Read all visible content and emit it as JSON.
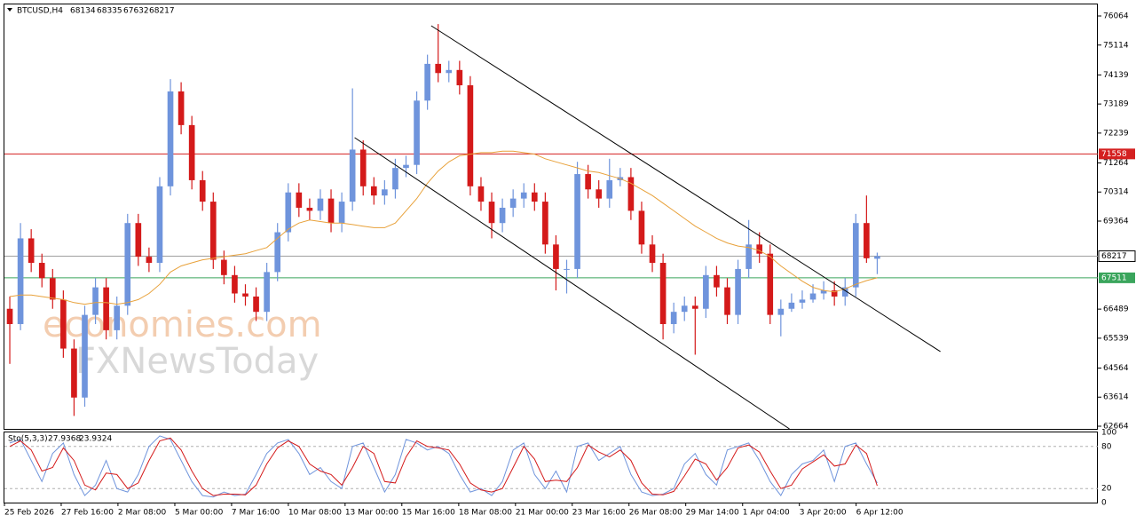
{
  "chart_data": {
    "type": "candlestick",
    "symbol": "BTCUSD,H4",
    "up_color": "#6f94dc",
    "down_color": "#d41a1a",
    "ohlc": [
      [
        66500,
        66900,
        64700,
        66000
      ],
      [
        66000,
        69300,
        65800,
        68800
      ],
      [
        68800,
        69100,
        67700,
        68000
      ],
      [
        68000,
        68300,
        67200,
        67500
      ],
      [
        67500,
        67800,
        66500,
        66800
      ],
      [
        66800,
        67100,
        64900,
        65200
      ],
      [
        65200,
        65500,
        63000,
        63600
      ],
      [
        63600,
        66600,
        63300,
        66300
      ],
      [
        66300,
        67500,
        66000,
        67200
      ],
      [
        67200,
        67500,
        65500,
        65800
      ],
      [
        65800,
        66900,
        65500,
        66600
      ],
      [
        66600,
        69600,
        66300,
        69300
      ],
      [
        69300,
        69600,
        67900,
        68200
      ],
      [
        68200,
        68500,
        67700,
        68000
      ],
      [
        68000,
        70800,
        67700,
        70500
      ],
      [
        70500,
        74000,
        70200,
        73600
      ],
      [
        73600,
        73900,
        72200,
        72500
      ],
      [
        72500,
        72800,
        70400,
        70700
      ],
      [
        70700,
        71000,
        69700,
        70000
      ],
      [
        70000,
        70300,
        67800,
        68100
      ],
      [
        68100,
        68400,
        67300,
        67600
      ],
      [
        67600,
        67900,
        66700,
        67000
      ],
      [
        67000,
        67300,
        66600,
        66900
      ],
      [
        66900,
        67200,
        66100,
        66400
      ],
      [
        66400,
        68000,
        66100,
        67700
      ],
      [
        67700,
        69300,
        67400,
        69000
      ],
      [
        69000,
        70600,
        68700,
        70300
      ],
      [
        70300,
        70600,
        69500,
        69800
      ],
      [
        69800,
        70100,
        69400,
        69700
      ],
      [
        69700,
        70400,
        69400,
        70100
      ],
      [
        70100,
        70400,
        69000,
        69300
      ],
      [
        69300,
        70300,
        69000,
        70000
      ],
      [
        70000,
        73700,
        69700,
        71700
      ],
      [
        71700,
        72000,
        70200,
        70500
      ],
      [
        70500,
        70800,
        69900,
        70200
      ],
      [
        70200,
        70700,
        69900,
        70400
      ],
      [
        70400,
        71400,
        70100,
        71100
      ],
      [
        71100,
        71500,
        70800,
        71200
      ],
      [
        71200,
        73600,
        70900,
        73300
      ],
      [
        73300,
        74800,
        73000,
        74500
      ],
      [
        74500,
        75800,
        73900,
        74200
      ],
      [
        74200,
        74600,
        73900,
        74300
      ],
      [
        74300,
        74600,
        73500,
        73800
      ],
      [
        73800,
        74100,
        70200,
        70500
      ],
      [
        70500,
        70800,
        69700,
        70000
      ],
      [
        70000,
        70300,
        68800,
        69300
      ],
      [
        69300,
        70100,
        69000,
        69800
      ],
      [
        69800,
        70400,
        69500,
        70100
      ],
      [
        70100,
        70600,
        69800,
        70300
      ],
      [
        70300,
        70600,
        69700,
        70000
      ],
      [
        70000,
        70300,
        68300,
        68600
      ],
      [
        68600,
        68900,
        67100,
        67800
      ],
      [
        67800,
        68100,
        67000,
        67800
      ],
      [
        67800,
        71300,
        67500,
        70900
      ],
      [
        70900,
        71200,
        70100,
        70400
      ],
      [
        70400,
        70700,
        69800,
        70100
      ],
      [
        70100,
        71400,
        69800,
        70700
      ],
      [
        70700,
        71100,
        70500,
        70800
      ],
      [
        70800,
        71100,
        69400,
        69700
      ],
      [
        69700,
        70000,
        68300,
        68600
      ],
      [
        68600,
        68900,
        67700,
        68000
      ],
      [
        68000,
        68300,
        65500,
        66000
      ],
      [
        66000,
        66700,
        65700,
        66400
      ],
      [
        66400,
        66900,
        66100,
        66600
      ],
      [
        66600,
        66900,
        65000,
        66500
      ],
      [
        66500,
        67900,
        66200,
        67600
      ],
      [
        67600,
        67900,
        66900,
        67200
      ],
      [
        67200,
        67500,
        66000,
        66300
      ],
      [
        66300,
        68100,
        66000,
        67800
      ],
      [
        67800,
        69400,
        67500,
        68600
      ],
      [
        68600,
        69000,
        68000,
        68300
      ],
      [
        68300,
        68600,
        66000,
        66300
      ],
      [
        66300,
        66800,
        65600,
        66500
      ],
      [
        66500,
        67000,
        66400,
        66700
      ],
      [
        66700,
        67100,
        66500,
        66800
      ],
      [
        66800,
        67300,
        66700,
        67000
      ],
      [
        67000,
        67400,
        66800,
        67100
      ],
      [
        67100,
        67400,
        66600,
        66900
      ],
      [
        66900,
        67500,
        66600,
        67200
      ],
      [
        67200,
        69600,
        66900,
        69300
      ],
      [
        69300,
        70200,
        68000,
        68150
      ],
      [
        68134,
        68335,
        67632,
        68217
      ]
    ],
    "ylim": [
      62577,
      76441
    ],
    "yticks": [
      76064,
      75114,
      74139,
      73189,
      72239,
      71264,
      70314,
      69364,
      66489,
      65539,
      64564,
      63614,
      62664
    ],
    "xlim": [
      -0.5,
      101.6
    ],
    "xticks": [
      {
        "value": -0.5,
        "label": "25 Feb 2026"
      },
      {
        "value": 4.8,
        "label": "27 Feb 16:00"
      },
      {
        "value": 10.1,
        "label": "2 Mar 08:00"
      },
      {
        "value": 15.41,
        "label": "5 Mar 00:00"
      },
      {
        "value": 20.71,
        "label": "7 Mar 16:00"
      },
      {
        "value": 26.01,
        "label": "10 Mar 08:00"
      },
      {
        "value": 31.31,
        "label": "13 Mar 00:00"
      },
      {
        "value": 36.61,
        "label": "15 Mar 16:00"
      },
      {
        "value": 41.92,
        "label": "18 Mar 08:00"
      },
      {
        "value": 47.22,
        "label": "21 Mar 00:00"
      },
      {
        "value": 52.52,
        "label": "23 Mar 16:00"
      },
      {
        "value": 57.82,
        "label": "26 Mar 08:00"
      },
      {
        "value": 63.12,
        "label": "29 Mar 14:00"
      },
      {
        "value": 68.43,
        "label": "1 Apr 04:00"
      },
      {
        "value": 73.73,
        "label": "3 Apr 20:00"
      },
      {
        "value": 79.03,
        "label": "6 Apr 12:00"
      }
    ],
    "ma": {
      "color": "#e8a13a",
      "values": [
        66900,
        66950,
        66950,
        66900,
        66850,
        66800,
        66700,
        66650,
        66700,
        66700,
        66650,
        66700,
        66800,
        67000,
        67300,
        67700,
        67900,
        68000,
        68100,
        68150,
        68200,
        68250,
        68300,
        68400,
        68500,
        68800,
        69100,
        69300,
        69400,
        69350,
        69300,
        69300,
        69250,
        69200,
        69150,
        69150,
        69300,
        69700,
        70100,
        70600,
        71000,
        71300,
        71500,
        71550,
        71600,
        71600,
        71650,
        71650,
        71600,
        71550,
        71400,
        71300,
        71200,
        71100,
        71000,
        70950,
        70850,
        70750,
        70600,
        70400,
        70200,
        69950,
        69700,
        69450,
        69200,
        69000,
        68800,
        68650,
        68550,
        68500,
        68400,
        68200,
        67900,
        67650,
        67400,
        67200,
        67100,
        67050,
        67150,
        67300,
        67420,
        67511
      ]
    },
    "levels": [
      {
        "value": 71558,
        "color": "#d42020"
      },
      {
        "value": 67511,
        "color": "#3aa55c"
      }
    ],
    "last_price_color": "#a0a0a0",
    "channel": {
      "color": "#000000",
      "lines": [
        {
          "x": [
            39.35,
            86.9
          ],
          "y": [
            75745,
            65102
          ]
        },
        {
          "x": [
            32.2,
            72.8
          ],
          "y": [
            72091,
            62577
          ]
        }
      ]
    },
    "watermark": [
      "economies.com",
      "FXNewsToday"
    ],
    "stochastic": {
      "label": "Sto(5,3,3)",
      "ylim": [
        0,
        100
      ],
      "yticks": [
        100,
        80,
        20,
        0
      ],
      "series": [
        {
          "color": "#6f94dc",
          "values": [
            85,
            90,
            60,
            30,
            70,
            85,
            40,
            10,
            25,
            60,
            20,
            15,
            40,
            80,
            95,
            90,
            60,
            30,
            10,
            8,
            15,
            10,
            12,
            40,
            70,
            85,
            90,
            70,
            40,
            50,
            30,
            20,
            80,
            85,
            50,
            15,
            40,
            90,
            85,
            75,
            80,
            70,
            40,
            15,
            20,
            10,
            30,
            75,
            85,
            40,
            20,
            45,
            15,
            80,
            85,
            60,
            70,
            80,
            40,
            15,
            10,
            12,
            20,
            55,
            70,
            40,
            25,
            75,
            80,
            85,
            60,
            30,
            10,
            40,
            55,
            60,
            75,
            30,
            80,
            85,
            55,
            27.9368
          ]
        },
        {
          "color": "#d41a1a",
          "values": [
            80,
            88,
            75,
            45,
            50,
            78,
            60,
            25,
            18,
            42,
            40,
            20,
            28,
            60,
            88,
            92,
            75,
            45,
            20,
            10,
            12,
            12,
            11,
            25,
            55,
            78,
            88,
            80,
            55,
            45,
            40,
            25,
            50,
            80,
            70,
            30,
            28,
            65,
            88,
            80,
            78,
            75,
            55,
            28,
            18,
            15,
            20,
            50,
            80,
            62,
            30,
            32,
            30,
            50,
            82,
            72,
            65,
            75,
            60,
            28,
            12,
            11,
            16,
            38,
            62,
            55,
            32,
            50,
            78,
            82,
            72,
            45,
            20,
            25,
            48,
            58,
            68,
            52,
            55,
            82,
            70,
            23.9324
          ]
        }
      ]
    }
  }
}
